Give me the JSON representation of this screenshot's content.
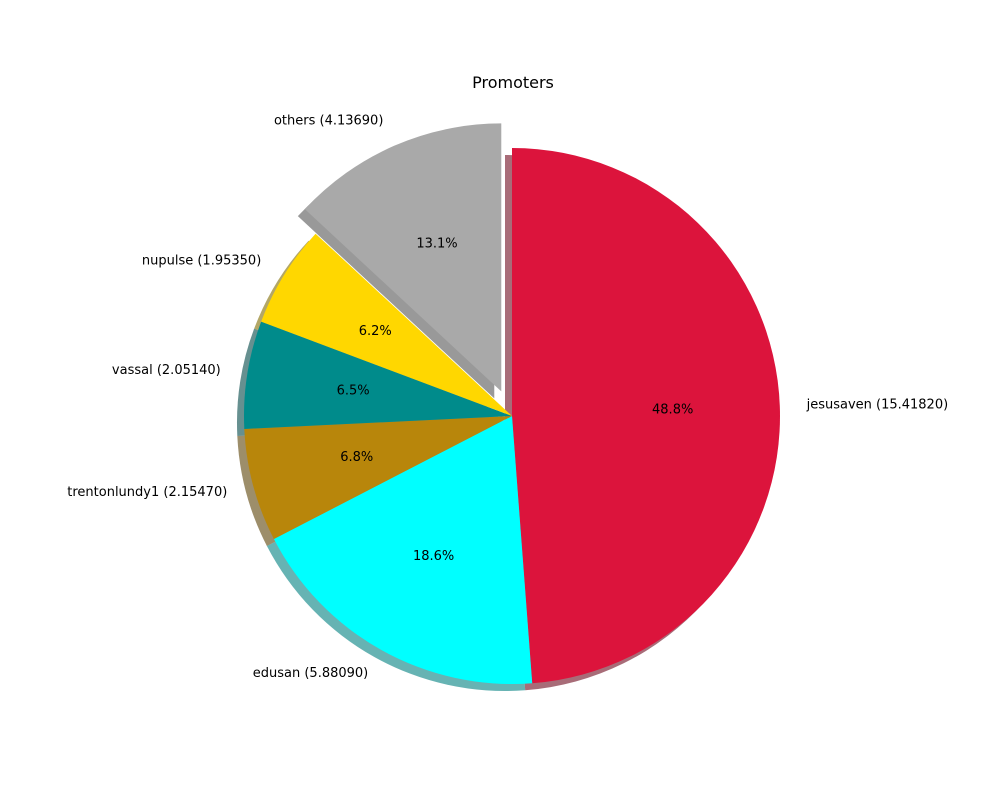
{
  "chart_data": {
    "type": "pie",
    "title": "Promoters",
    "shadow": true,
    "start_angle_deg": 90,
    "direction": "clockwise",
    "slices": [
      {
        "label": "jesusaven (15.41820)",
        "value": 15.4182,
        "percent_label": "48.8%",
        "color": "#dc143c",
        "explode": false
      },
      {
        "label": "edusan (5.88090)",
        "value": 5.8809,
        "percent_label": "18.6%",
        "color": "#00ffff",
        "explode": false
      },
      {
        "label": "trentonlundy1 (2.15470)",
        "value": 2.1547,
        "percent_label": "6.8%",
        "color": "#b8860b",
        "explode": false
      },
      {
        "label": "vassal (2.05140)",
        "value": 2.0514,
        "percent_label": "6.5%",
        "color": "#008b8b",
        "explode": false
      },
      {
        "label": "nupulse (1.95350)",
        "value": 1.9535,
        "percent_label": "6.2%",
        "color": "#ffd700",
        "explode": false
      },
      {
        "label": "others (4.13690)",
        "value": 4.1369,
        "percent_label": "13.1%",
        "color": "#a9a9a9",
        "explode": true
      }
    ]
  }
}
